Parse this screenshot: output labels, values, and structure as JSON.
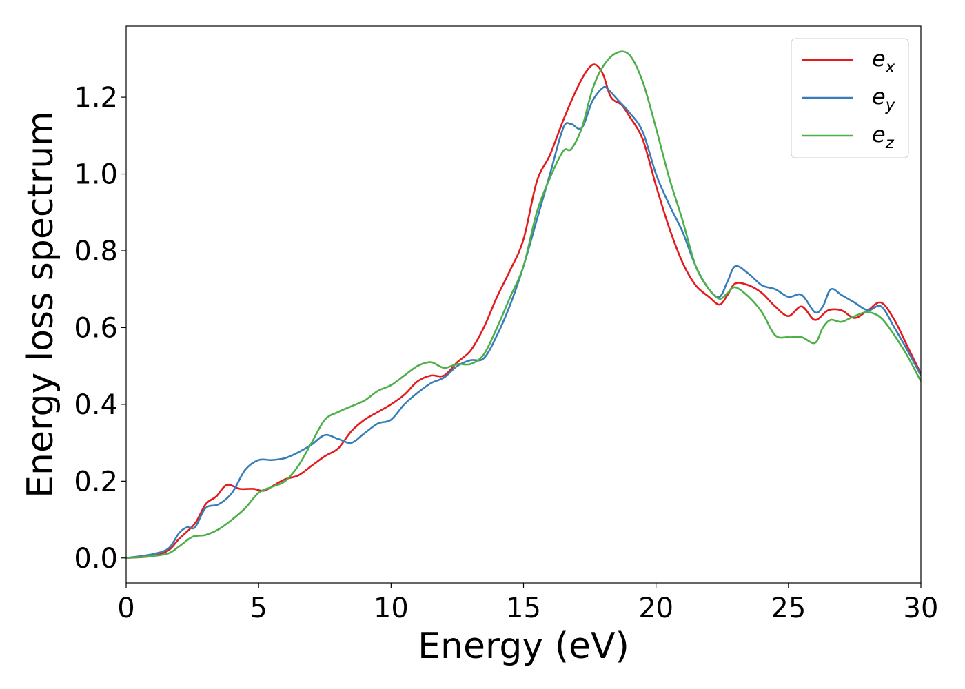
{
  "chart_data": {
    "type": "line",
    "xlabel": "Energy (eV)",
    "ylabel": "Energy loss spectrum",
    "xlim": [
      0,
      30
    ],
    "ylim": [
      -0.065,
      1.385
    ],
    "xticks": [
      0,
      5,
      10,
      15,
      20,
      25,
      30
    ],
    "yticks": [
      0.0,
      0.2,
      0.4,
      0.6,
      0.8,
      1.0,
      1.2
    ],
    "xtick_labels": [
      "0",
      "5",
      "10",
      "15",
      "20",
      "25",
      "30"
    ],
    "ytick_labels": [
      "0.0",
      "0.2",
      "0.4",
      "0.6",
      "0.8",
      "1.0",
      "1.2"
    ],
    "grid": false,
    "legend_position": "top-right",
    "series": [
      {
        "name": "e",
        "subscript": "x",
        "color": "#e41a1c",
        "x": [
          0,
          1,
          1.6,
          2,
          2.6,
          3,
          3.4,
          3.8,
          4.3,
          4.8,
          5.2,
          5.6,
          6,
          6.5,
          7,
          7.5,
          8,
          8.5,
          9,
          9.5,
          10,
          10.5,
          11,
          11.5,
          12,
          12.5,
          13,
          13.5,
          14,
          14.5,
          15,
          15.5,
          16,
          16.5,
          17,
          17.4,
          17.7,
          18,
          18.3,
          18.7,
          19,
          19.5,
          20,
          20.5,
          21,
          21.5,
          22,
          22.4,
          22.7,
          23,
          23.5,
          24,
          24.5,
          25,
          25.5,
          26,
          26.5,
          27,
          27.5,
          28,
          28.5,
          29,
          29.5,
          30
        ],
        "y": [
          0,
          0.005,
          0.02,
          0.05,
          0.09,
          0.14,
          0.16,
          0.19,
          0.18,
          0.18,
          0.175,
          0.19,
          0.205,
          0.215,
          0.24,
          0.265,
          0.285,
          0.33,
          0.36,
          0.38,
          0.4,
          0.425,
          0.46,
          0.475,
          0.475,
          0.51,
          0.54,
          0.6,
          0.68,
          0.75,
          0.83,
          0.98,
          1.05,
          1.14,
          1.22,
          1.27,
          1.285,
          1.26,
          1.2,
          1.18,
          1.15,
          1.09,
          0.97,
          0.86,
          0.77,
          0.71,
          0.68,
          0.66,
          0.685,
          0.715,
          0.71,
          0.69,
          0.655,
          0.63,
          0.655,
          0.62,
          0.645,
          0.645,
          0.625,
          0.645,
          0.665,
          0.62,
          0.55,
          0.48
        ]
      },
      {
        "name": "e",
        "subscript": "y",
        "color": "#377eb8",
        "x": [
          0,
          1,
          1.6,
          2,
          2.3,
          2.6,
          3,
          3.5,
          4,
          4.5,
          5,
          5.5,
          6,
          6.5,
          7,
          7.5,
          8,
          8.5,
          9,
          9.5,
          10,
          10.5,
          11,
          11.5,
          12,
          12.5,
          13,
          13.5,
          14,
          14.5,
          15,
          15.5,
          16,
          16.5,
          16.8,
          17.2,
          17.6,
          18,
          18.2,
          18.6,
          19,
          19.5,
          20,
          20.5,
          21,
          21.5,
          22,
          22.4,
          22.7,
          23,
          23.5,
          24,
          24.5,
          25,
          25.5,
          26,
          26.3,
          26.6,
          27,
          27.5,
          28,
          28.5,
          29,
          29.5,
          30
        ],
        "y": [
          0,
          0.01,
          0.025,
          0.065,
          0.08,
          0.08,
          0.13,
          0.14,
          0.17,
          0.23,
          0.255,
          0.255,
          0.26,
          0.275,
          0.295,
          0.32,
          0.31,
          0.3,
          0.325,
          0.35,
          0.36,
          0.4,
          0.43,
          0.455,
          0.47,
          0.5,
          0.515,
          0.52,
          0.58,
          0.66,
          0.76,
          0.88,
          1.0,
          1.12,
          1.13,
          1.12,
          1.19,
          1.225,
          1.22,
          1.19,
          1.16,
          1.11,
          1.0,
          0.92,
          0.85,
          0.76,
          0.7,
          0.68,
          0.72,
          0.76,
          0.74,
          0.71,
          0.7,
          0.68,
          0.685,
          0.64,
          0.655,
          0.7,
          0.685,
          0.665,
          0.645,
          0.655,
          0.6,
          0.54,
          0.475
        ]
      },
      {
        "name": "e",
        "subscript": "z",
        "color": "#4daf4a",
        "x": [
          0,
          1,
          1.6,
          2,
          2.5,
          3,
          3.5,
          4,
          4.5,
          5,
          5.5,
          6,
          6.5,
          7,
          7.5,
          8,
          8.5,
          9,
          9.5,
          10,
          10.5,
          11,
          11.5,
          12,
          12.5,
          13,
          13.5,
          14,
          14.5,
          15,
          15.5,
          16,
          16.5,
          16.8,
          17.2,
          17.6,
          18,
          18.5,
          19,
          19.5,
          20,
          20.5,
          21,
          21.5,
          22,
          22.4,
          22.7,
          23,
          23.5,
          24,
          24.5,
          25,
          25.5,
          26,
          26.3,
          26.6,
          27,
          27.5,
          28,
          28.5,
          29,
          29.5,
          30
        ],
        "y": [
          0,
          0.005,
          0.012,
          0.03,
          0.055,
          0.06,
          0.075,
          0.1,
          0.13,
          0.17,
          0.185,
          0.2,
          0.24,
          0.3,
          0.36,
          0.38,
          0.395,
          0.41,
          0.435,
          0.45,
          0.475,
          0.5,
          0.51,
          0.495,
          0.505,
          0.505,
          0.53,
          0.6,
          0.68,
          0.76,
          0.9,
          0.99,
          1.06,
          1.065,
          1.12,
          1.22,
          1.28,
          1.315,
          1.31,
          1.24,
          1.12,
          0.99,
          0.88,
          0.76,
          0.7,
          0.675,
          0.69,
          0.705,
          0.68,
          0.64,
          0.58,
          0.575,
          0.575,
          0.56,
          0.6,
          0.62,
          0.615,
          0.63,
          0.64,
          0.625,
          0.58,
          0.525,
          0.46
        ]
      }
    ]
  }
}
